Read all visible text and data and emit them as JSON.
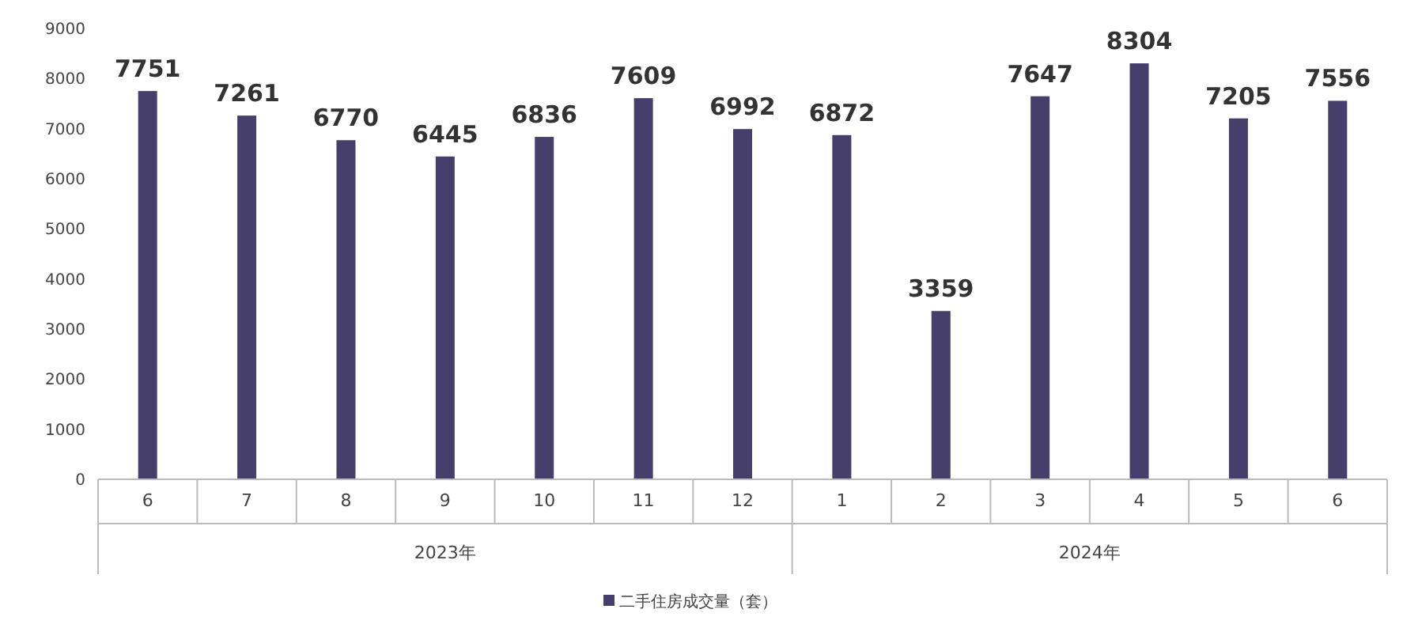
{
  "chart_data": {
    "type": "bar",
    "categories": [
      "6",
      "7",
      "8",
      "9",
      "10",
      "11",
      "12",
      "1",
      "2",
      "3",
      "4",
      "5",
      "6"
    ],
    "series": [
      {
        "name": "二手住房成交量（套）",
        "color": "#463f6b",
        "values": [
          7751,
          7261,
          6770,
          6445,
          6836,
          7609,
          6992,
          6872,
          3359,
          7647,
          8304,
          7205,
          7556
        ]
      }
    ],
    "ylim": [
      0,
      9000
    ],
    "yticks": [
      0,
      1000,
      2000,
      3000,
      4000,
      5000,
      6000,
      7000,
      8000,
      9000
    ],
    "annotations": [
      "2023年",
      "2024年"
    ],
    "data_labels": true,
    "grid": false,
    "legend": "bottom"
  }
}
